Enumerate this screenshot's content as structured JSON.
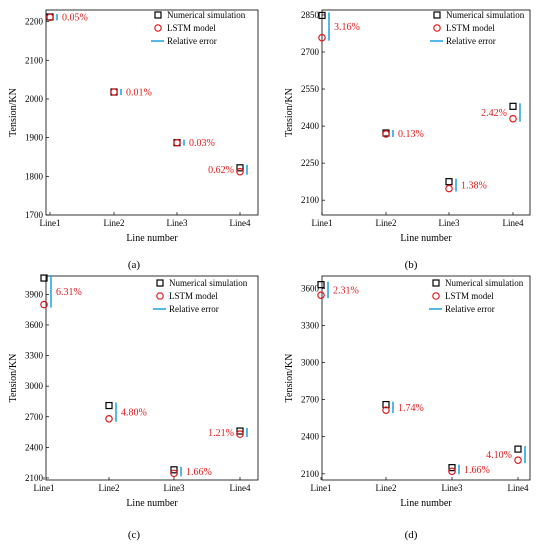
{
  "colors": {
    "numerical": "#000000",
    "lstm": "#e31a1c",
    "error_bar": "#2aa6e0",
    "error_text": "#e31a1c"
  },
  "chart_data": [
    {
      "type": "scatter",
      "panel_label": "(a)",
      "categories": [
        "Line1",
        "Line2",
        "Line3",
        "Line4"
      ],
      "xlabel": "Line number",
      "ylabel": "Tension/KN",
      "ylim": [
        1700,
        2230
      ],
      "yticks": [
        1700,
        1800,
        1900,
        2000,
        2100,
        2200
      ],
      "legend_position": "top-right",
      "legend": [
        "Numerical simulation",
        "LSTM model",
        "Relative error"
      ],
      "series": [
        {
          "name": "Numerical simulation",
          "values": [
            2212,
            2018,
            1887,
            1822
          ]
        },
        {
          "name": "LSTM model",
          "values": [
            2211,
            2018,
            1887,
            1812
          ]
        }
      ],
      "error_labels": [
        "0.05%",
        "0.01%",
        "0.03%",
        "0.62%"
      ]
    },
    {
      "type": "scatter",
      "panel_label": "(b)",
      "categories": [
        "Line1",
        "Line2",
        "Line3",
        "Line4"
      ],
      "xlabel": "Line number",
      "ylabel": "Tension/KN",
      "ylim": [
        2040,
        2870
      ],
      "yticks": [
        2100,
        2250,
        2400,
        2550,
        2700,
        2850
      ],
      "legend_position": "top-right",
      "legend": [
        "Numerical simulation",
        "LSTM model",
        "Relative error"
      ],
      "series": [
        {
          "name": "Numerical simulation",
          "values": [
            2848,
            2372,
            2175,
            2480
          ]
        },
        {
          "name": "LSTM model",
          "values": [
            2758,
            2368,
            2147,
            2430
          ]
        }
      ],
      "error_labels": [
        "3.16%",
        "0.13%",
        "1.38%",
        "2.42%"
      ]
    },
    {
      "type": "scatter",
      "panel_label": "(c)",
      "categories": [
        "Line1",
        "Line2",
        "Line3",
        "Line4"
      ],
      "xlabel": "Line number",
      "ylabel": "Tension/KN",
      "ylim": [
        2080,
        4080
      ],
      "yticks": [
        2100,
        2400,
        2700,
        3000,
        3300,
        3600,
        3900
      ],
      "legend_position": "top-right",
      "legend": [
        "Numerical simulation",
        "LSTM model",
        "Relative error"
      ],
      "series": [
        {
          "name": "Numerical simulation",
          "values": [
            4060,
            2810,
            2180,
            2560
          ]
        },
        {
          "name": "LSTM model",
          "values": [
            3800,
            2680,
            2145,
            2530
          ]
        }
      ],
      "error_labels": [
        "6.31%",
        "4.80%",
        "1.66%",
        "1.21%"
      ]
    },
    {
      "type": "scatter",
      "panel_label": "(d)",
      "categories": [
        "Line1",
        "Line2",
        "Line3",
        "Line4"
      ],
      "xlabel": "Line number",
      "ylabel": "Tension/KN",
      "ylim": [
        2050,
        3700
      ],
      "yticks": [
        2100,
        2400,
        2700,
        3000,
        3300,
        3600
      ],
      "legend_position": "top-right",
      "legend": [
        "Numerical simulation",
        "LSTM model",
        "Relative error"
      ],
      "series": [
        {
          "name": "Numerical simulation",
          "values": [
            3630,
            2660,
            2150,
            2300
          ]
        },
        {
          "name": "LSTM model",
          "values": [
            3545,
            2615,
            2120,
            2210
          ]
        }
      ],
      "error_labels": [
        "2.31%",
        "1.74%",
        "1.66%",
        "4.10%"
      ]
    }
  ]
}
